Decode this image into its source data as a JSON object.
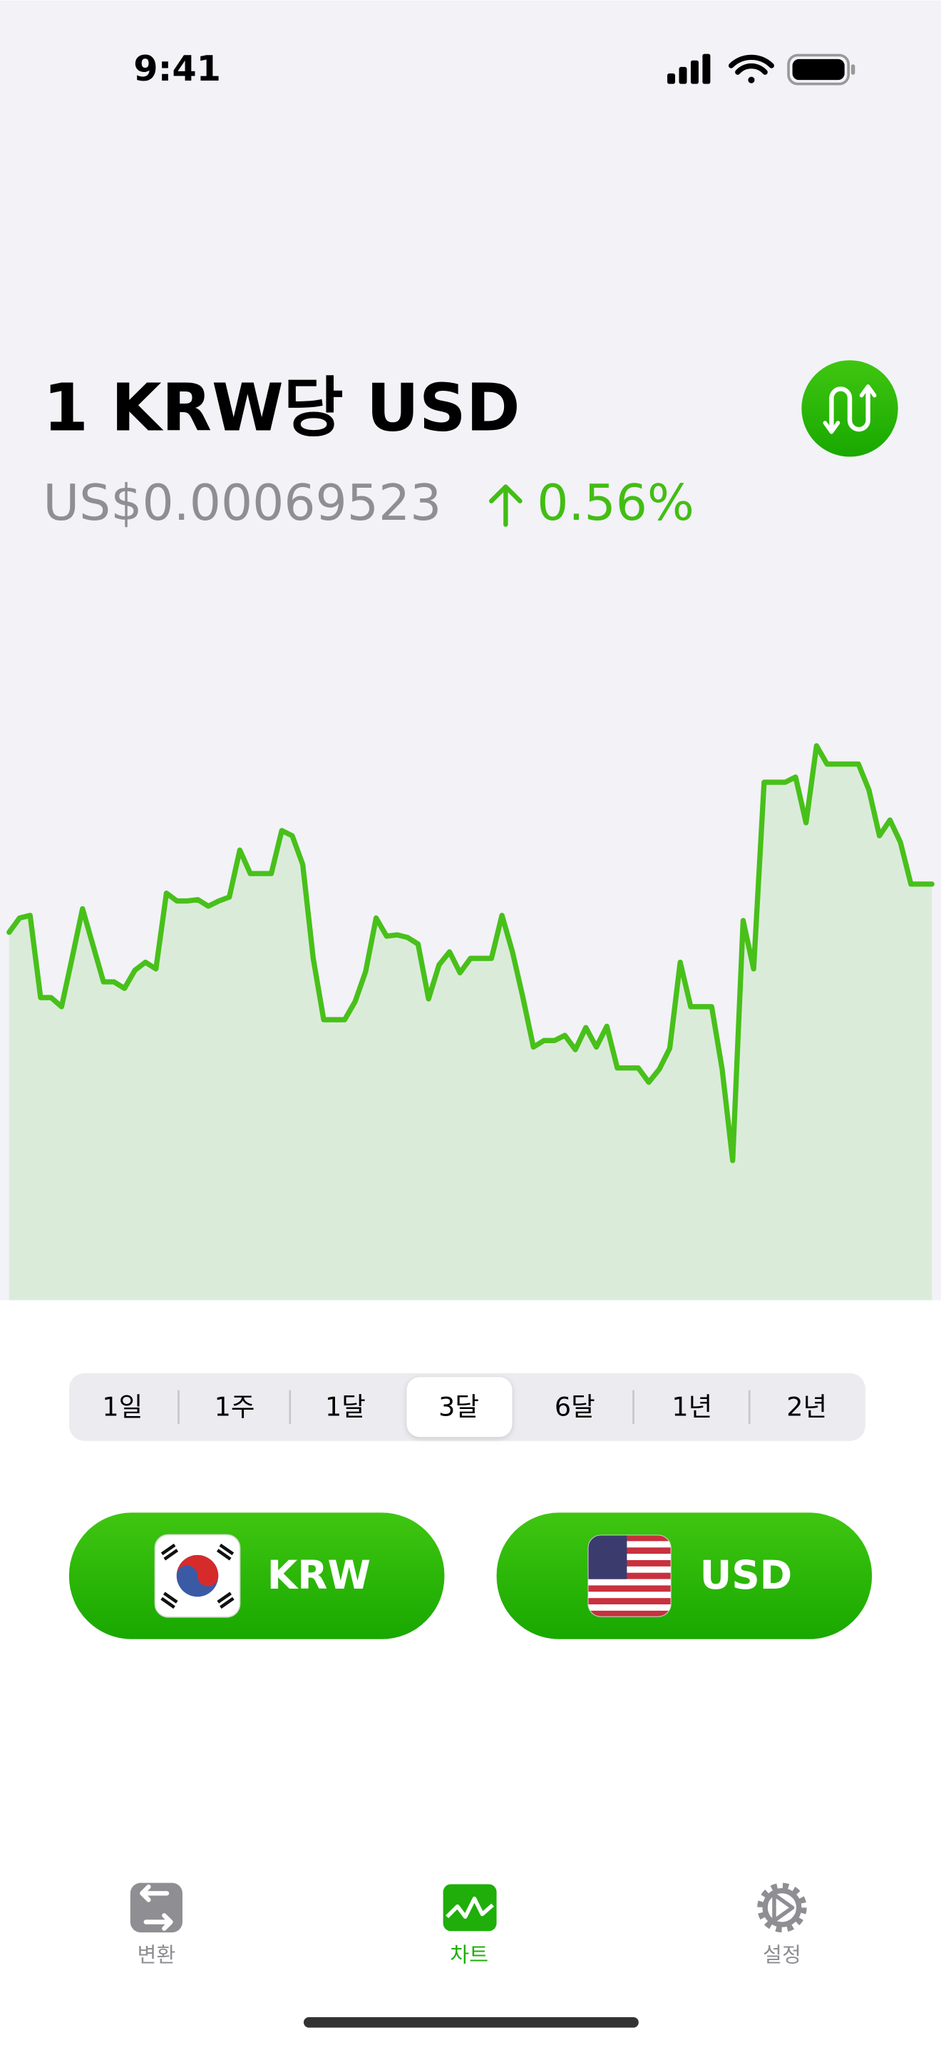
{
  "status_bar": {
    "time": "9:41"
  },
  "header": {
    "title": "1 KRW당 USD",
    "rate": "US$0.00069523",
    "change": "0.56%"
  },
  "chart_data": {
    "type": "area",
    "color": "#48c01a",
    "ylim": [
      0.00066,
      0.00071
    ],
    "values": [
      0.00069115,
      0.00069236,
      0.00069258,
      0.00068562,
      0.00068562,
      0.00068485,
      0.00068894,
      0.00069314,
      0.00069004,
      0.00068695,
      0.00068695,
      0.0006864,
      0.00068794,
      0.00068861,
      0.00068805,
      0.00069446,
      0.0006938,
      0.0006938,
      0.00069391,
      0.00069336,
      0.0006938,
      0.00069413,
      0.00069811,
      0.00069612,
      0.00069612,
      0.00069612,
      0.00069976,
      0.00069932,
      0.00069689,
      0.00068894,
      0.00068375,
      0.00068375,
      0.00068375,
      0.00068529,
      0.00068783,
      0.00069236,
      0.00069082,
      0.00069093,
      0.00069071,
      0.00069015,
      0.00068551,
      0.00068839,
      0.00068949,
      0.00068772,
      0.00068894,
      0.00068894,
      0.00068894,
      0.00069258,
      0.00068949,
      0.00068562,
      0.00068143,
      0.00068198,
      0.00068198,
      0.00068242,
      0.00068121,
      0.00068308,
      0.00068143,
      0.00068319,
      0.00067966,
      0.00067966,
      0.00067966,
      0.00067845,
      0.00067955,
      0.00068132,
      0.00068861,
      0.00068485,
      0.00068485,
      0.00068485,
      0.00067955,
      0.00067182,
      0.00069214,
      0.00068805,
      0.00070385,
      0.00070385,
      0.00070385,
      0.00070429,
      0.00070042,
      0.00070694,
      0.00070539,
      0.00070539,
      0.00070539,
      0.00070539,
      0.00070319,
      0.00069932,
      0.00070065,
      0.00069877,
      0.00069523,
      0.00069523,
      0.00069523
    ]
  },
  "ranges": [
    "1일",
    "1주",
    "1달",
    "3달",
    "6달",
    "1년",
    "2년"
  ],
  "selected_range": 3,
  "currencies": [
    "KRW",
    "USD"
  ],
  "tabs": [
    "변환",
    "차트",
    "설정"
  ],
  "active_tab": 1
}
